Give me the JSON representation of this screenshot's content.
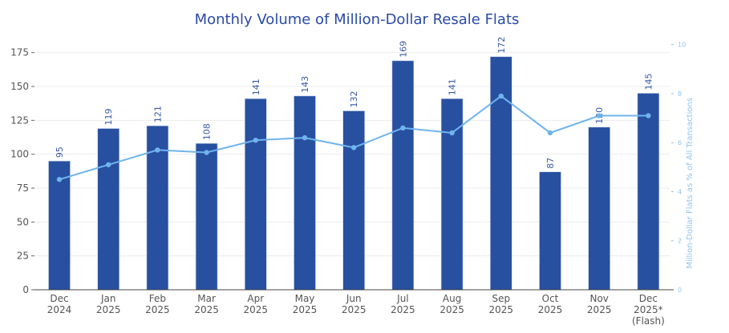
{
  "chart_data": {
    "type": "bar+line",
    "title": "Monthly Volume of Million-Dollar Resale Flats",
    "categories": [
      [
        "Dec",
        "2024"
      ],
      [
        "Jan",
        "2025"
      ],
      [
        "Feb",
        "2025"
      ],
      [
        "Mar",
        "2025"
      ],
      [
        "Apr",
        "2025"
      ],
      [
        "May",
        "2025"
      ],
      [
        "Jun",
        "2025"
      ],
      [
        "Jul",
        "2025"
      ],
      [
        "Aug",
        "2025"
      ],
      [
        "Sep",
        "2025"
      ],
      [
        "Oct",
        "2025"
      ],
      [
        "Nov",
        "2025"
      ],
      [
        "Dec",
        "2025*",
        "(Flash)"
      ]
    ],
    "series": [
      {
        "type": "bar",
        "axis": "left",
        "values": [
          95,
          119,
          121,
          108,
          141,
          143,
          132,
          169,
          141,
          172,
          87,
          120,
          145
        ]
      },
      {
        "type": "line",
        "axis": "right",
        "values": [
          4.5,
          5.1,
          5.7,
          5.6,
          6.1,
          6.2,
          5.8,
          6.6,
          6.4,
          7.9,
          6.4,
          7.1,
          7.1
        ]
      }
    ],
    "ylabel": "",
    "y2label": "Million-Dollar Flats as % of All Transactions",
    "ylim": [
      0,
      175
    ],
    "yticks": [
      0,
      25,
      50,
      75,
      100,
      125,
      150,
      175
    ],
    "y2lim": [
      0,
      10
    ],
    "y2ticks": [
      0,
      2,
      4,
      6,
      8,
      10
    ],
    "grid": true,
    "colors": {
      "bar": "#2850a0",
      "line": "#6fb4ee",
      "title": "#2a4aa8",
      "label": "#3a5aa8",
      "axis2": "#8fc4f0"
    }
  }
}
